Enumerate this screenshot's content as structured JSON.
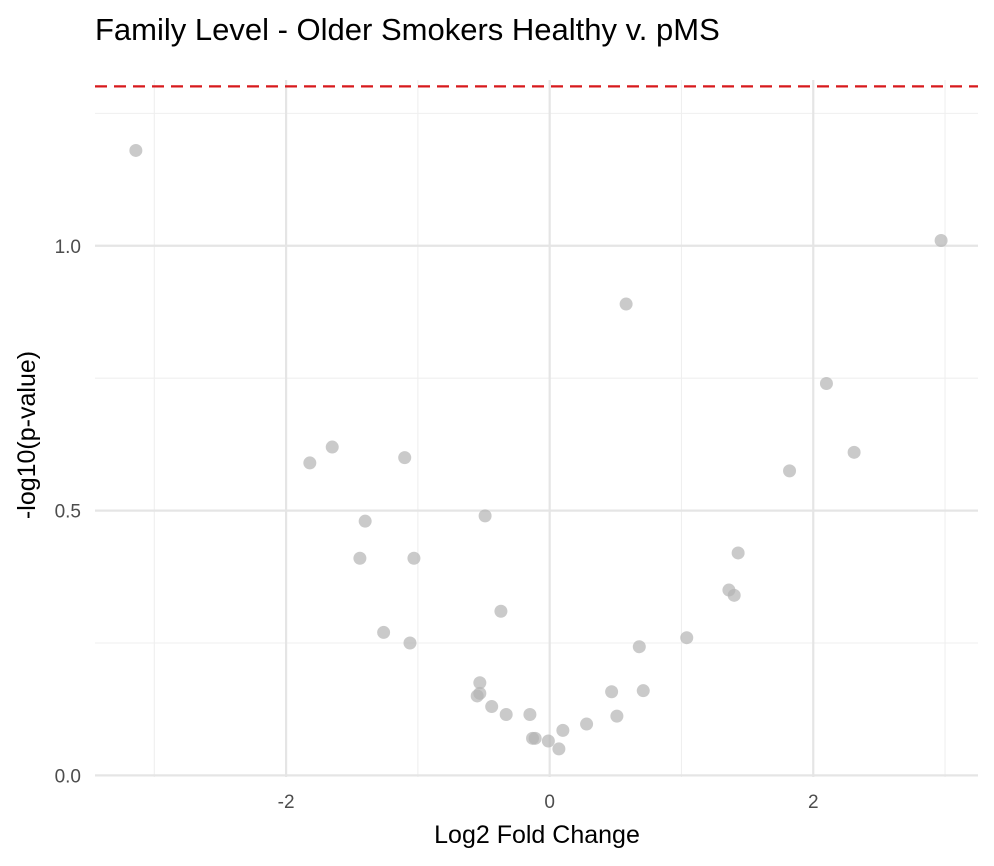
{
  "chart_data": {
    "type": "scatter",
    "title": "Family Level - Older Smokers Healthy v. pMS",
    "xlabel": "Log2 Fold Change",
    "ylabel": "-log10(p-value)",
    "xlim": [
      -3.45,
      3.25
    ],
    "ylim": [
      -0.003,
      1.313
    ],
    "x_ticks": [
      -2,
      0,
      2
    ],
    "x_tick_labels": [
      "-2",
      "0",
      "2"
    ],
    "y_ticks": [
      0,
      0.5,
      1
    ],
    "y_tick_labels": [
      "0.0",
      "0.5",
      "1.0"
    ],
    "x_minor_ticks": [
      -3,
      -1,
      1,
      3
    ],
    "y_minor_ticks": [
      0.25,
      0.75,
      1.25
    ],
    "grid": true,
    "legend": "none",
    "threshold_line": {
      "y": 1.301,
      "style": "dashed",
      "color": "#d7191c"
    },
    "point_color": "#b3b3b3",
    "points": [
      {
        "x": -3.14,
        "y": 1.18
      },
      {
        "x": -1.82,
        "y": 0.59
      },
      {
        "x": -1.65,
        "y": 0.62
      },
      {
        "x": -1.4,
        "y": 0.48
      },
      {
        "x": -1.44,
        "y": 0.41
      },
      {
        "x": -1.26,
        "y": 0.27
      },
      {
        "x": -1.1,
        "y": 0.6
      },
      {
        "x": -1.03,
        "y": 0.41
      },
      {
        "x": -1.06,
        "y": 0.25
      },
      {
        "x": -0.49,
        "y": 0.49
      },
      {
        "x": -0.37,
        "y": 0.31
      },
      {
        "x": -0.53,
        "y": 0.175
      },
      {
        "x": -0.55,
        "y": 0.15
      },
      {
        "x": -0.53,
        "y": 0.155
      },
      {
        "x": -0.44,
        "y": 0.13
      },
      {
        "x": -0.33,
        "y": 0.115
      },
      {
        "x": -0.15,
        "y": 0.115
      },
      {
        "x": -0.13,
        "y": 0.07
      },
      {
        "x": -0.11,
        "y": 0.07
      },
      {
        "x": -0.01,
        "y": 0.065
      },
      {
        "x": 0.07,
        "y": 0.05
      },
      {
        "x": 0.1,
        "y": 0.085
      },
      {
        "x": 0.28,
        "y": 0.097
      },
      {
        "x": 0.47,
        "y": 0.158
      },
      {
        "x": 0.51,
        "y": 0.112
      },
      {
        "x": 0.58,
        "y": 0.89
      },
      {
        "x": 0.68,
        "y": 0.243
      },
      {
        "x": 0.71,
        "y": 0.16
      },
      {
        "x": 1.04,
        "y": 0.26
      },
      {
        "x": 1.36,
        "y": 0.35
      },
      {
        "x": 1.4,
        "y": 0.34
      },
      {
        "x": 1.43,
        "y": 0.42
      },
      {
        "x": 1.82,
        "y": 0.575
      },
      {
        "x": 2.1,
        "y": 0.74
      },
      {
        "x": 2.31,
        "y": 0.61
      },
      {
        "x": 2.97,
        "y": 1.01
      }
    ]
  }
}
